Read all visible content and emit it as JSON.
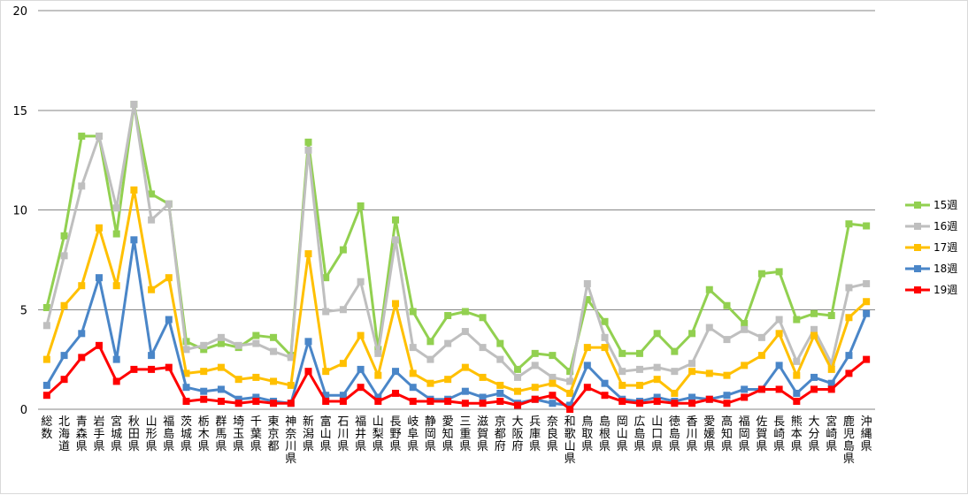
{
  "chart_data": {
    "type": "line",
    "title": "",
    "xlabel": "",
    "ylabel": "",
    "ylim": [
      0,
      20
    ],
    "yticks": [
      0,
      5,
      10,
      15,
      20
    ],
    "grid": true,
    "legend_position": "right",
    "categories": [
      "総数",
      "北海道",
      "青森県",
      "岩手県",
      "宮城県",
      "秋田県",
      "山形県",
      "福島県",
      "茨城県",
      "栃木県",
      "群馬県",
      "埼玉県",
      "千葉県",
      "東京都",
      "神奈川県",
      "新潟県",
      "富山県",
      "石川県",
      "福井県",
      "山梨県",
      "長野県",
      "岐阜県",
      "静岡県",
      "愛知県",
      "三重県",
      "滋賀県",
      "京都府",
      "大阪府",
      "兵庫県",
      "奈良県",
      "和歌山県",
      "鳥取県",
      "島根県",
      "岡山県",
      "広島県",
      "山口県",
      "徳島県",
      "香川県",
      "愛媛県",
      "高知県",
      "福岡県",
      "佐賀県",
      "長崎県",
      "熊本県",
      "大分県",
      "宮崎県",
      "鹿児島県",
      "沖縄県"
    ],
    "series": [
      {
        "name": "15週",
        "color": "#92d050",
        "values": [
          5.1,
          8.7,
          13.7,
          13.7,
          8.8,
          15.3,
          10.8,
          10.3,
          3.4,
          3.0,
          3.3,
          3.1,
          3.7,
          3.6,
          2.7,
          13.4,
          6.6,
          8.0,
          10.2,
          3.0,
          9.5,
          4.9,
          3.4,
          4.7,
          4.9,
          4.6,
          3.3,
          2.0,
          2.8,
          2.7,
          1.9,
          5.5,
          4.4,
          2.8,
          2.8,
          3.8,
          2.9,
          3.8,
          6.0,
          5.2,
          4.3,
          6.8,
          6.9,
          4.5,
          4.8,
          4.7,
          9.3,
          9.2
        ]
      },
      {
        "name": "16週",
        "color": "#bfbfbf",
        "values": [
          4.2,
          7.7,
          11.2,
          13.7,
          10.1,
          15.3,
          9.5,
          10.3,
          3.0,
          3.2,
          3.6,
          3.2,
          3.3,
          2.9,
          2.6,
          13.0,
          4.9,
          5.0,
          6.4,
          2.8,
          8.5,
          3.1,
          2.5,
          3.3,
          3.9,
          3.1,
          2.5,
          1.6,
          2.2,
          1.6,
          1.4,
          6.3,
          3.6,
          1.9,
          2.0,
          2.1,
          1.9,
          2.3,
          4.1,
          3.5,
          4.0,
          3.6,
          4.5,
          2.4,
          4.0,
          2.3,
          6.1,
          6.3
        ]
      },
      {
        "name": "17週",
        "color": "#ffc000",
        "values": [
          2.5,
          5.2,
          6.2,
          9.1,
          6.2,
          11.0,
          6.0,
          6.6,
          1.8,
          1.9,
          2.1,
          1.5,
          1.6,
          1.4,
          1.2,
          7.8,
          1.9,
          2.3,
          3.7,
          1.7,
          5.3,
          1.8,
          1.3,
          1.5,
          2.1,
          1.6,
          1.2,
          0.9,
          1.1,
          1.3,
          0.8,
          3.1,
          3.1,
          1.2,
          1.2,
          1.5,
          0.8,
          1.9,
          1.8,
          1.7,
          2.2,
          2.7,
          3.8,
          1.7,
          3.7,
          2.0,
          4.6,
          5.4
        ]
      },
      {
        "name": "18週",
        "color": "#4a86c8",
        "values": [
          1.2,
          2.7,
          3.8,
          6.6,
          2.5,
          8.5,
          2.7,
          4.5,
          1.1,
          0.9,
          1.0,
          0.5,
          0.6,
          0.4,
          0.3,
          3.4,
          0.7,
          0.7,
          2.0,
          0.6,
          1.9,
          1.1,
          0.5,
          0.5,
          0.9,
          0.6,
          0.8,
          0.3,
          0.5,
          0.3,
          0.2,
          2.2,
          1.3,
          0.5,
          0.4,
          0.6,
          0.4,
          0.6,
          0.5,
          0.7,
          1.0,
          1.0,
          2.2,
          0.8,
          1.6,
          1.3,
          2.7,
          4.8
        ]
      },
      {
        "name": "19週",
        "color": "#ff0000",
        "values": [
          0.7,
          1.5,
          2.6,
          3.2,
          1.4,
          2.0,
          2.0,
          2.1,
          0.4,
          0.5,
          0.4,
          0.3,
          0.4,
          0.3,
          0.3,
          1.9,
          0.4,
          0.4,
          1.1,
          0.4,
          0.8,
          0.4,
          0.4,
          0.4,
          0.3,
          0.3,
          0.4,
          0.2,
          0.5,
          0.7,
          0.0,
          1.1,
          0.7,
          0.4,
          0.3,
          0.4,
          0.3,
          0.3,
          0.5,
          0.3,
          0.6,
          1.0,
          1.0,
          0.4,
          1.0,
          1.0,
          1.8,
          2.5
        ]
      }
    ]
  }
}
